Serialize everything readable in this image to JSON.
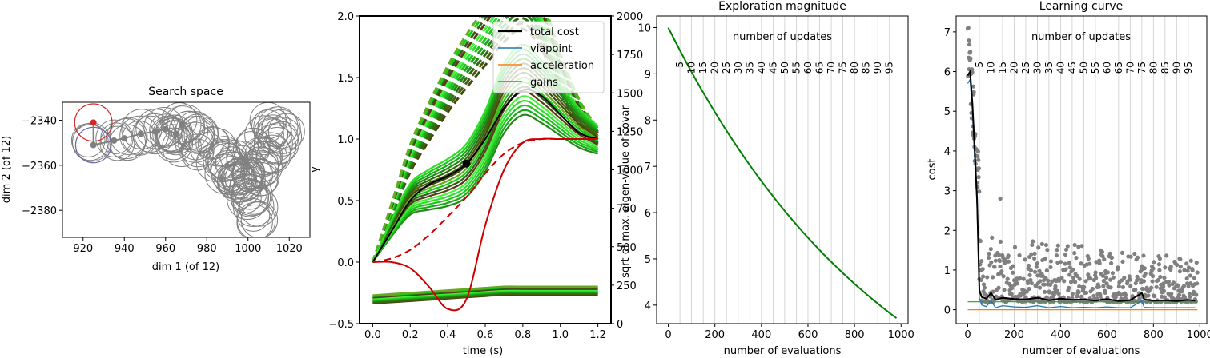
{
  "colors": {
    "gray": "#808080",
    "red": "#d62728",
    "dark_red": "#cc0000",
    "green": "#008000",
    "blue_line": "#1f77b4",
    "orange_line": "#ff7f0e",
    "green_line": "#2ca02c",
    "black": "#000000",
    "dark_olive": "#3d4a0a",
    "bright_green": "#22ee22",
    "dark_brown": "#4a2a10"
  },
  "chart_data": [
    {
      "id": "search_space",
      "type": "scatter",
      "title": "Search space",
      "xlabel": "dim 1 (of 12)",
      "ylabel": "dim 2 (of 12)",
      "xlim": [
        910,
        1030
      ],
      "ylim": [
        -2392,
        -2332
      ],
      "xticks": [
        "920",
        "940",
        "960",
        "980",
        "1000",
        "1020"
      ],
      "yticks": [
        "−2340",
        "−2360",
        "−2380"
      ],
      "ytick_values": [
        -2340,
        -2360,
        -2380
      ],
      "xtick_values": [
        920,
        940,
        960,
        980,
        1000,
        1020
      ],
      "circle_radius": 7.5,
      "start_point": [
        925,
        -2351
      ],
      "current_point": [
        925,
        -2341
      ],
      "centers": [
        [
          925,
          -2351
        ],
        [
          935,
          -2349
        ],
        [
          940,
          -2348
        ],
        [
          948,
          -2346
        ],
        [
          955,
          -2345
        ],
        [
          960,
          -2344
        ],
        [
          965,
          -2346
        ],
        [
          968,
          -2342
        ],
        [
          972,
          -2344
        ],
        [
          966,
          -2350
        ],
        [
          974,
          -2348
        ],
        [
          978,
          -2354
        ],
        [
          984,
          -2352
        ],
        [
          988,
          -2356
        ],
        [
          992,
          -2360
        ],
        [
          996,
          -2358
        ],
        [
          990,
          -2365
        ],
        [
          994,
          -2366
        ],
        [
          998,
          -2368
        ],
        [
          1002,
          -2364
        ],
        [
          1006,
          -2360
        ],
        [
          1004,
          -2352
        ],
        [
          1010,
          -2348
        ],
        [
          1014,
          -2344
        ],
        [
          1016,
          -2350
        ],
        [
          1012,
          -2356
        ],
        [
          1008,
          -2364
        ],
        [
          1000,
          -2372
        ],
        [
          1003,
          -2380
        ],
        [
          1004,
          -2385
        ],
        [
          1000,
          -2375
        ],
        [
          996,
          -2370
        ],
        [
          1018,
          -2346
        ],
        [
          1010,
          -2342
        ],
        [
          1006,
          -2355
        ],
        [
          998,
          -2362
        ],
        [
          993,
          -2367
        ],
        [
          986,
          -2358
        ],
        [
          976,
          -2345
        ],
        [
          962,
          -2348
        ]
      ]
    },
    {
      "id": "trajectories",
      "type": "line",
      "xlabel": "time (s)",
      "ylabel": "y",
      "ylabel_right": "sqrt of max. eigen-value of covar",
      "xlim": [
        -0.07,
        1.27
      ],
      "ylim": [
        -0.5,
        2.0
      ],
      "ylim_right": [
        0,
        2000
      ],
      "xticks": [
        "0.0",
        "0.2",
        "0.4",
        "0.6",
        "0.8",
        "1.0",
        "1.2"
      ],
      "xtick_values": [
        0,
        0.2,
        0.4,
        0.6,
        0.8,
        1.0,
        1.2
      ],
      "yticks": [
        "−0.5",
        "0.0",
        "0.5",
        "1.0",
        "1.5",
        "2.0"
      ],
      "ytick_values": [
        -0.5,
        0,
        0.5,
        1.0,
        1.5,
        2.0
      ],
      "yticks_right": [
        "0",
        "250",
        "500",
        "750",
        "1000",
        "1250",
        "1500",
        "1750",
        "2000"
      ],
      "ytick_values_right": [
        0,
        250,
        500,
        750,
        1000,
        1250,
        1500,
        1750,
        2000
      ],
      "viapoint": [
        0.5,
        0.8
      ],
      "legend": {
        "position": "upper right",
        "entries": [
          {
            "label": "total cost",
            "color": "#000000"
          },
          {
            "label": "viapoint",
            "color": "#1f77b4"
          },
          {
            "label": "acceleration",
            "color": "#ff7f0e"
          },
          {
            "label": "gains",
            "color": "#2ca02c"
          }
        ]
      },
      "x": [
        0,
        0.1,
        0.2,
        0.3,
        0.4,
        0.5,
        0.6,
        0.7,
        0.8,
        0.9,
        1.0,
        1.1,
        1.2
      ],
      "red_solid": [
        0,
        0,
        -0.05,
        -0.2,
        -0.38,
        -0.3,
        0.3,
        0.75,
        0.97,
        1.0,
        1.0,
        1.0,
        1.0
      ],
      "red_dashed": [
        0,
        0.03,
        0.1,
        0.22,
        0.37,
        0.53,
        0.72,
        0.88,
        0.97,
        1.0,
        1.0,
        1.0,
        1.0
      ],
      "black_solid": [
        0,
        0.25,
        0.5,
        0.63,
        0.7,
        0.8,
        1.0,
        1.25,
        1.4,
        1.35,
        1.2,
        1.05,
        1.0
      ],
      "green_solid_base": [
        0,
        0.28,
        0.52,
        0.6,
        0.66,
        0.76,
        1.0,
        1.35,
        1.5,
        1.4,
        1.25,
        1.1,
        1.0
      ],
      "green_dashed_base": [
        0,
        0.42,
        0.85,
        1.15,
        1.42,
        1.65,
        1.85,
        2.05,
        2.15,
        1.95,
        1.55,
        1.22,
        1.02
      ],
      "bottom_band_base": [
        -0.3,
        -0.29,
        -0.28,
        -0.27,
        -0.26,
        -0.25,
        -0.24,
        -0.23,
        -0.23,
        -0.23,
        -0.23,
        -0.23,
        -0.23
      ]
    },
    {
      "id": "exploration",
      "type": "line",
      "title": "Exploration magnitude",
      "xlabel": "number of evaluations",
      "top_label": "number of updates",
      "xlim": [
        -50,
        1030
      ],
      "ylim": [
        3.6,
        10.25
      ],
      "xticks": [
        "0",
        "200",
        "400",
        "600",
        "800",
        "1000"
      ],
      "xtick_values": [
        0,
        200,
        400,
        600,
        800,
        1000
      ],
      "yticks": [
        "4",
        "5",
        "6",
        "7",
        "8",
        "9",
        "10"
      ],
      "ytick_values": [
        4,
        5,
        6,
        7,
        8,
        9,
        10
      ],
      "update_labels": [
        "5",
        "10",
        "15",
        "20",
        "25",
        "30",
        "35",
        "40",
        "45",
        "50",
        "55",
        "60",
        "65",
        "70",
        "75",
        "80",
        "85",
        "90",
        "95"
      ],
      "update_evaluations": [
        50,
        100,
        150,
        200,
        250,
        300,
        350,
        400,
        450,
        500,
        550,
        600,
        650,
        700,
        750,
        800,
        850,
        900,
        950
      ],
      "start_value": 10.0,
      "end_value": 3.72,
      "end_evaluation": 980,
      "series": [
        {
          "values_desc": "exponential decay",
          "color": "#008000"
        }
      ]
    },
    {
      "id": "learning_curve",
      "type": "scatter",
      "title": "Learning curve",
      "xlabel": "number of evaluations",
      "ylabel": "cost",
      "top_label": "number of updates",
      "xlim": [
        -50,
        1030
      ],
      "ylim": [
        -0.35,
        7.4
      ],
      "xticks": [
        "0",
        "200",
        "400",
        "600",
        "800",
        "1000"
      ],
      "xtick_values": [
        0,
        200,
        400,
        600,
        800,
        1000
      ],
      "yticks": [
        "0",
        "1",
        "2",
        "3",
        "4",
        "5",
        "6",
        "7"
      ],
      "ytick_values": [
        0,
        1,
        2,
        3,
        4,
        5,
        6,
        7
      ],
      "update_labels": [
        "5",
        "10",
        "15",
        "20",
        "25",
        "30",
        "35",
        "40",
        "45",
        "50",
        "55",
        "60",
        "65",
        "70",
        "75",
        "80",
        "85",
        "90",
        "95"
      ],
      "update_evaluations": [
        50,
        100,
        150,
        200,
        250,
        300,
        350,
        400,
        450,
        500,
        550,
        600,
        650,
        700,
        750,
        800,
        850,
        900,
        950
      ],
      "total_cost_curve": [
        [
          0,
          5.9
        ],
        [
          10,
          6.0
        ],
        [
          20,
          5.2
        ],
        [
          30,
          4.0
        ],
        [
          40,
          2.8
        ],
        [
          50,
          0.5
        ],
        [
          60,
          0.32
        ],
        [
          80,
          0.28
        ],
        [
          100,
          0.42
        ],
        [
          120,
          0.25
        ],
        [
          150,
          0.3
        ],
        [
          200,
          0.27
        ],
        [
          250,
          0.26
        ],
        [
          300,
          0.3
        ],
        [
          350,
          0.24
        ],
        [
          400,
          0.28
        ],
        [
          450,
          0.25
        ],
        [
          500,
          0.26
        ],
        [
          550,
          0.23
        ],
        [
          600,
          0.27
        ],
        [
          650,
          0.22
        ],
        [
          700,
          0.24
        ],
        [
          750,
          0.42
        ],
        [
          760,
          0.26
        ],
        [
          800,
          0.23
        ],
        [
          850,
          0.24
        ],
        [
          900,
          0.22
        ],
        [
          950,
          0.25
        ],
        [
          980,
          0.23
        ]
      ],
      "viapoint_curve_level": 0.05,
      "acceleration_level": 0.0,
      "gains_level": 0.2
    }
  ]
}
